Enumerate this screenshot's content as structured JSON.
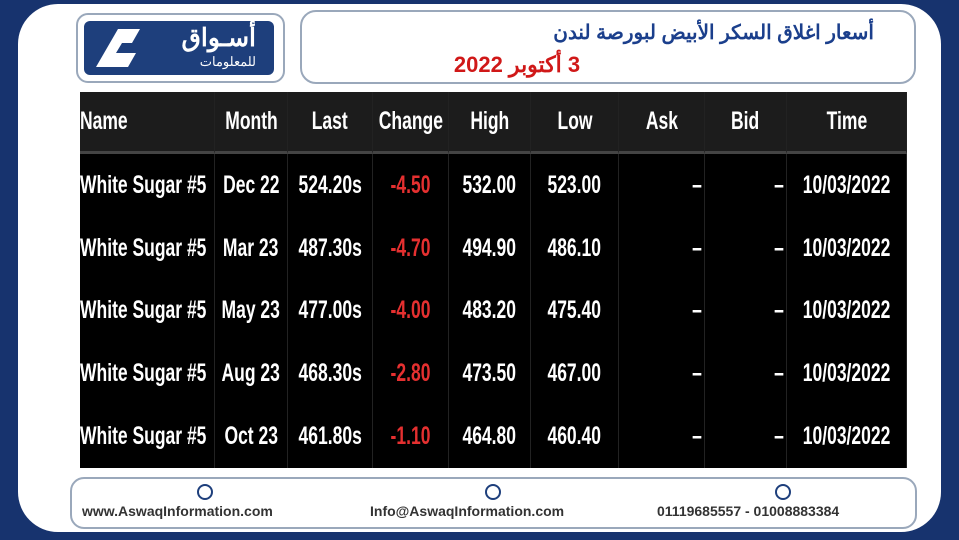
{
  "header": {
    "logo_text": "أسـواق",
    "logo_subtext": "للمعلومات",
    "title": "أسعار اغلاق السكر الأبيض لبورصة لندن",
    "date": "3 أكتوبر 2022"
  },
  "table": {
    "columns": [
      "Name",
      "Month",
      "Last",
      "Change",
      "High",
      "Low",
      "Ask",
      "Bid",
      "Time"
    ],
    "rows": [
      [
        "White Sugar #5",
        "Dec 22",
        "524.20s",
        "-4.50",
        "532.00",
        "523.00",
        "–",
        "–",
        "10/03/2022"
      ],
      [
        "White Sugar #5",
        "Mar 23",
        "487.30s",
        "-4.70",
        "494.90",
        "486.10",
        "–",
        "–",
        "10/03/2022"
      ],
      [
        "White Sugar #5",
        "May 23",
        "477.00s",
        "-4.00",
        "483.20",
        "475.40",
        "–",
        "–",
        "10/03/2022"
      ],
      [
        "White Sugar #5",
        "Aug 23",
        "468.30s",
        "-2.80",
        "473.50",
        "467.00",
        "–",
        "–",
        "10/03/2022"
      ],
      [
        "White Sugar #5",
        "Oct 23",
        "461.80s",
        "-1.10",
        "464.80",
        "460.40",
        "–",
        "–",
        "10/03/2022"
      ]
    ]
  },
  "footer": {
    "website": "www.AswaqInformation.com",
    "email": "Info@AswaqInformation.com",
    "phone": "01119685557 - 01008883384"
  }
}
